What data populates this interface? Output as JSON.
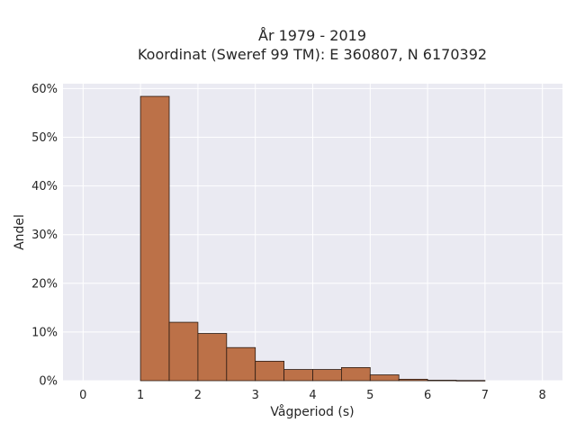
{
  "chart_data": {
    "type": "bar",
    "title_line1": "År 1979 - 2019",
    "title_line2": "Koordinat (Sweref 99 TM): E 360807, N 6170392",
    "xlabel": "Vågperiod (s)",
    "ylabel": "Andel",
    "xlim": [
      -0.35,
      8.35
    ],
    "ylim": [
      0,
      61
    ],
    "x_ticks": [
      "0",
      "1",
      "2",
      "3",
      "4",
      "5",
      "6",
      "7",
      "8"
    ],
    "y_ticks": [
      "0%",
      "10%",
      "20%",
      "30%",
      "40%",
      "50%",
      "60%"
    ],
    "bin_width": 0.5,
    "bins": [
      {
        "x0": 1.0,
        "value": 58.4
      },
      {
        "x0": 1.5,
        "value": 12.0
      },
      {
        "x0": 2.0,
        "value": 9.7
      },
      {
        "x0": 2.5,
        "value": 6.8
      },
      {
        "x0": 3.0,
        "value": 4.0
      },
      {
        "x0": 3.5,
        "value": 2.3
      },
      {
        "x0": 4.0,
        "value": 2.3
      },
      {
        "x0": 4.5,
        "value": 2.7
      },
      {
        "x0": 5.0,
        "value": 1.2
      },
      {
        "x0": 5.5,
        "value": 0.3
      },
      {
        "x0": 6.0,
        "value": 0.1
      },
      {
        "x0": 6.5,
        "value": 0.05
      }
    ],
    "grid": true,
    "colors": {
      "bar_fill": "#bc7148",
      "bar_edge": "#2a1a12",
      "plot_bg": "#eaeaf2",
      "grid": "#ffffff"
    }
  }
}
